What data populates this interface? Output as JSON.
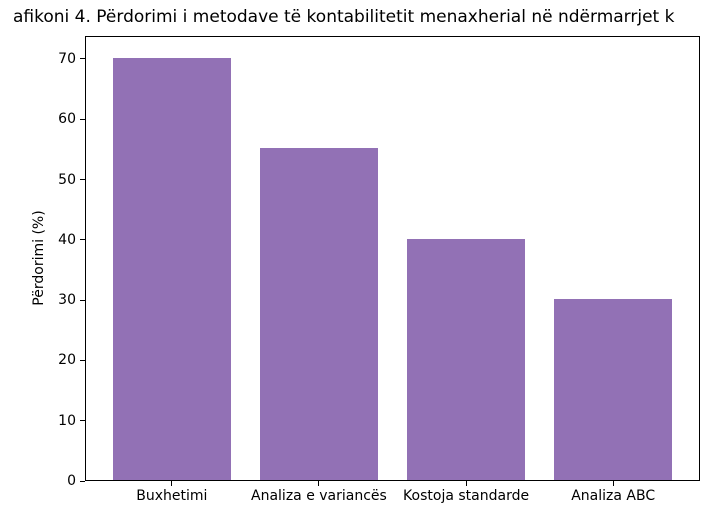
{
  "chart_data": {
    "type": "bar",
    "title": "afikoni 4. Përdorimi i metodave të kontabilitetit menaxherial në ndërmarrjet k",
    "categories": [
      "Buxhetimi",
      "Analiza e variancës",
      "Kostoja standarde",
      "Analiza ABC"
    ],
    "values": [
      70,
      55,
      40,
      30
    ],
    "xlabel": "",
    "ylabel": "Përdorimi (%)",
    "ylim": [
      0,
      73.8
    ],
    "yticks": [
      0,
      10,
      20,
      30,
      40,
      50,
      60,
      70
    ],
    "bar_color": "#9271b5",
    "grid": false,
    "legend_position": "none"
  }
}
